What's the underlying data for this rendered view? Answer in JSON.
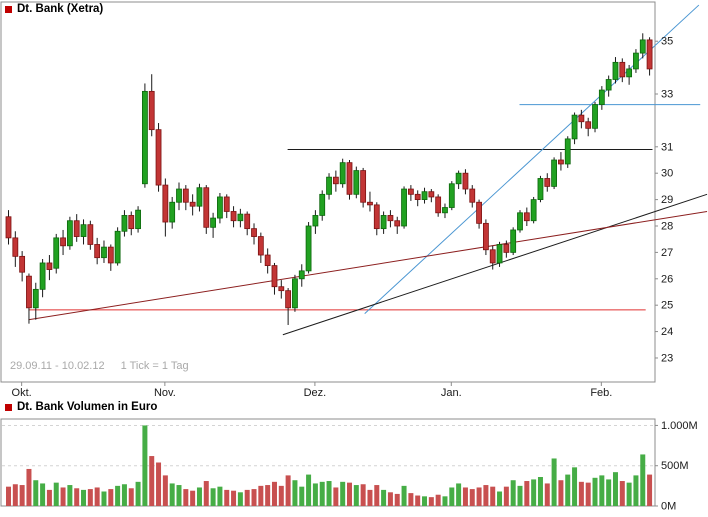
{
  "colors": {
    "legend_square": "#c00000",
    "candle_up_fill": "#21a121",
    "candle_up_stroke": "#0c660c",
    "candle_down_fill": "#c23535",
    "candle_down_stroke": "#7c1212",
    "wick": "#1a1a1a",
    "volume_up": "#46ad46",
    "volume_down": "#c85050",
    "border": "#8c8c8c",
    "axis_text": "#1a1a1a",
    "muted_text": "#a9a9a9",
    "trend_blue": "#4a96d2",
    "trend_black": "#1c1c1c",
    "trend_darkred": "#8c1f1f",
    "level_red": "#e03030"
  },
  "chart_data": [
    {
      "type": "candlestick",
      "title": "Dt. Bank (Xetra)",
      "period_label": "29.09.11 - 10.02.12",
      "tick_label": "1 Tick = 1 Tag",
      "xlabel": "",
      "ylabel": "",
      "ylim": [
        22.09,
        36.41
      ],
      "y_ticks": [
        23,
        24,
        25,
        26,
        27,
        28,
        29,
        30,
        31,
        33,
        35
      ],
      "x_month_ticks": [
        {
          "label": "Okt.",
          "day": 2
        },
        {
          "label": "Nov.",
          "day": 23
        },
        {
          "label": "Dez.",
          "day": 45
        },
        {
          "label": "Jan.",
          "day": 65
        },
        {
          "label": "Feb.",
          "day": 87
        }
      ],
      "ohlc": [
        [
          28.35,
          28.6,
          27.3,
          27.55
        ],
        [
          27.55,
          27.8,
          26.45,
          26.85
        ],
        [
          26.85,
          27.05,
          25.9,
          26.25
        ],
        [
          26.1,
          26.2,
          24.3,
          24.9
        ],
        [
          24.9,
          25.85,
          24.45,
          25.6
        ],
        [
          25.6,
          26.75,
          25.3,
          26.6
        ],
        [
          26.6,
          26.9,
          25.95,
          26.35
        ],
        [
          26.4,
          27.7,
          26.2,
          27.55
        ],
        [
          27.55,
          27.85,
          26.9,
          27.25
        ],
        [
          27.25,
          28.35,
          27.1,
          28.2
        ],
        [
          28.2,
          28.45,
          27.4,
          27.6
        ],
        [
          27.6,
          28.25,
          27.3,
          28.05
        ],
        [
          28.05,
          28.2,
          27.1,
          27.3
        ],
        [
          27.3,
          27.55,
          26.55,
          26.8
        ],
        [
          26.8,
          27.45,
          26.6,
          27.2
        ],
        [
          27.2,
          27.3,
          26.3,
          26.6
        ],
        [
          26.6,
          27.95,
          26.5,
          27.8
        ],
        [
          27.8,
          28.6,
          27.6,
          28.4
        ],
        [
          28.4,
          28.55,
          27.65,
          27.9
        ],
        [
          27.9,
          28.75,
          27.75,
          28.6
        ],
        [
          29.6,
          33.4,
          29.45,
          33.1
        ],
        [
          33.1,
          33.75,
          31.4,
          31.65
        ],
        [
          31.65,
          31.9,
          29.3,
          29.55
        ],
        [
          29.55,
          29.8,
          27.6,
          28.15
        ],
        [
          28.15,
          29.1,
          27.9,
          28.9
        ],
        [
          28.9,
          29.65,
          28.6,
          29.4
        ],
        [
          29.4,
          29.55,
          28.6,
          28.9
        ],
        [
          28.9,
          29.2,
          28.4,
          28.75
        ],
        [
          28.75,
          29.6,
          28.55,
          29.45
        ],
        [
          29.45,
          29.55,
          27.7,
          27.95
        ],
        [
          27.95,
          28.5,
          27.55,
          28.3
        ],
        [
          28.3,
          29.25,
          28.1,
          29.1
        ],
        [
          29.1,
          29.2,
          28.3,
          28.55
        ],
        [
          28.55,
          28.75,
          27.95,
          28.2
        ],
        [
          28.2,
          28.65,
          27.95,
          28.45
        ],
        [
          28.45,
          28.55,
          27.65,
          27.9
        ],
        [
          27.9,
          28.1,
          27.3,
          27.6
        ],
        [
          27.6,
          27.75,
          26.6,
          26.9
        ],
        [
          26.9,
          27.15,
          26.2,
          26.5
        ],
        [
          26.5,
          26.6,
          25.4,
          25.7
        ],
        [
          25.7,
          25.95,
          25.25,
          25.55
        ],
        [
          25.55,
          25.65,
          24.25,
          24.9
        ],
        [
          24.9,
          26.15,
          24.75,
          26.0
        ],
        [
          26.0,
          26.55,
          25.7,
          26.3
        ],
        [
          26.3,
          28.15,
          26.2,
          28.0
        ],
        [
          28.0,
          28.6,
          27.7,
          28.4
        ],
        [
          28.4,
          29.35,
          28.2,
          29.2
        ],
        [
          29.2,
          30.0,
          29.0,
          29.85
        ],
        [
          29.85,
          30.1,
          29.3,
          29.6
        ],
        [
          29.6,
          30.55,
          29.45,
          30.4
        ],
        [
          30.4,
          30.5,
          29.0,
          29.2
        ],
        [
          29.2,
          30.25,
          29.05,
          30.1
        ],
        [
          30.1,
          30.2,
          28.7,
          28.9
        ],
        [
          28.9,
          29.3,
          28.55,
          28.8
        ],
        [
          28.8,
          28.9,
          27.65,
          27.9
        ],
        [
          27.9,
          28.55,
          27.7,
          28.4
        ],
        [
          28.4,
          28.6,
          27.95,
          28.2
        ],
        [
          28.2,
          28.35,
          27.7,
          28.0
        ],
        [
          28.0,
          29.5,
          27.9,
          29.4
        ],
        [
          29.4,
          29.55,
          28.95,
          29.2
        ],
        [
          29.2,
          29.35,
          28.75,
          29.0
        ],
        [
          29.0,
          29.45,
          28.85,
          29.3
        ],
        [
          29.3,
          29.4,
          28.9,
          29.1
        ],
        [
          29.1,
          29.2,
          28.35,
          28.5
        ],
        [
          28.5,
          28.85,
          28.3,
          28.7
        ],
        [
          28.7,
          29.7,
          28.6,
          29.6
        ],
        [
          29.6,
          30.1,
          29.4,
          30.0
        ],
        [
          30.0,
          30.15,
          29.2,
          29.4
        ],
        [
          29.4,
          29.55,
          28.7,
          28.9
        ],
        [
          28.9,
          29.0,
          27.9,
          28.1
        ],
        [
          28.1,
          28.25,
          26.9,
          27.1
        ],
        [
          27.1,
          27.25,
          26.35,
          26.6
        ],
        [
          26.6,
          27.4,
          26.45,
          27.3
        ],
        [
          27.3,
          27.45,
          26.8,
          27.0
        ],
        [
          27.0,
          27.95,
          26.9,
          27.85
        ],
        [
          27.85,
          28.6,
          27.75,
          28.5
        ],
        [
          28.5,
          28.7,
          28.0,
          28.2
        ],
        [
          28.2,
          29.1,
          28.1,
          29.0
        ],
        [
          29.0,
          29.9,
          28.9,
          29.8
        ],
        [
          29.8,
          30.0,
          29.3,
          29.5
        ],
        [
          29.5,
          30.6,
          29.4,
          30.5
        ],
        [
          30.5,
          30.8,
          30.1,
          30.35
        ],
        [
          30.35,
          31.4,
          30.2,
          31.3
        ],
        [
          31.3,
          32.3,
          31.1,
          32.2
        ],
        [
          32.2,
          32.4,
          31.7,
          31.95
        ],
        [
          31.95,
          32.1,
          31.4,
          31.7
        ],
        [
          31.7,
          32.7,
          31.55,
          32.6
        ],
        [
          32.6,
          33.3,
          32.4,
          33.15
        ],
        [
          33.15,
          33.7,
          32.9,
          33.55
        ],
        [
          33.55,
          34.4,
          33.4,
          34.2
        ],
        [
          34.2,
          34.35,
          33.45,
          33.65
        ],
        [
          33.65,
          34.1,
          33.35,
          33.95
        ],
        [
          33.95,
          34.7,
          33.8,
          34.55
        ],
        [
          34.55,
          35.3,
          34.35,
          35.05
        ],
        [
          35.05,
          35.15,
          33.7,
          33.95
        ]
      ],
      "trend_lines": [
        {
          "name": "horizontal-support-red",
          "color_key": "level_red",
          "x1": 3,
          "y1": 24.82,
          "x2": 93.5,
          "y2": 24.82
        },
        {
          "name": "horizontal-resistance-black",
          "color_key": "trend_black",
          "x1": 41,
          "y1": 30.9,
          "x2": 94.5,
          "y2": 30.9
        },
        {
          "name": "horizontal-resistance-blue",
          "color_key": "trend_blue",
          "x1": 75,
          "y1": 32.6,
          "x2": 101.5,
          "y2": 32.6
        },
        {
          "name": "uptrend-blue",
          "color_key": "trend_blue",
          "x1": 52.3,
          "y1": 24.68,
          "x2": 101.3,
          "y2": 36.37
        },
        {
          "name": "uptrend-black",
          "color_key": "trend_black",
          "x1": 40.3,
          "y1": 23.88,
          "x2": 102.5,
          "y2": 29.2
        },
        {
          "name": "uptrend-darkred",
          "color_key": "trend_darkred",
          "x1": 3,
          "y1": 24.45,
          "x2": 102.5,
          "y2": 28.55
        }
      ]
    },
    {
      "type": "bar",
      "title": "Dt. Bank Volumen in Euro",
      "unit": "millions-of-euro",
      "ylim": [
        0,
        1080
      ],
      "y_ticks": [
        {
          "value": 1000,
          "label": "1.000M"
        },
        {
          "value": 500,
          "label": "500M"
        },
        {
          "value": 0,
          "label": "0M"
        }
      ],
      "color_rule": "green if same-day candle closed up, red if closed down",
      "values": [
        240,
        270,
        260,
        460,
        320,
        280,
        200,
        290,
        230,
        260,
        220,
        200,
        210,
        230,
        180,
        210,
        250,
        270,
        220,
        300,
        1000,
        620,
        540,
        380,
        280,
        260,
        210,
        190,
        230,
        310,
        220,
        240,
        200,
        190,
        170,
        200,
        210,
        250,
        260,
        300,
        250,
        380,
        320,
        240,
        390,
        280,
        300,
        310,
        230,
        300,
        290,
        260,
        270,
        200,
        260,
        200,
        170,
        150,
        250,
        160,
        130,
        120,
        110,
        140,
        120,
        230,
        280,
        230,
        210,
        230,
        260,
        240,
        180,
        240,
        320,
        250,
        310,
        330,
        360,
        280,
        590,
        320,
        390,
        480,
        300,
        290,
        350,
        380,
        330,
        420,
        310,
        290,
        380,
        640,
        390
      ]
    }
  ]
}
